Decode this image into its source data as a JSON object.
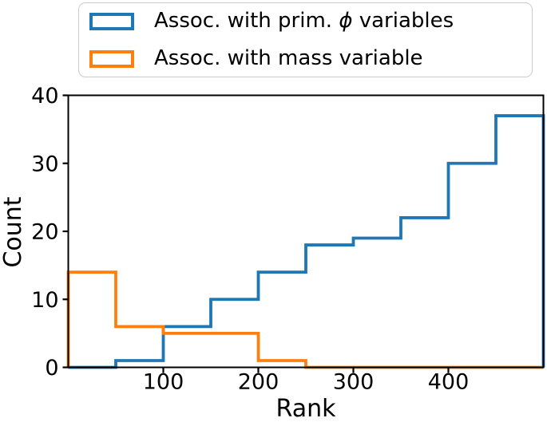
{
  "chart_data": {
    "type": "step_histogram",
    "title": "",
    "xlabel": "Rank",
    "ylabel": "Count",
    "xlim": [
      0,
      500
    ],
    "ylim": [
      0,
      40
    ],
    "x_ticks": [
      100,
      200,
      300,
      400
    ],
    "y_ticks": [
      0,
      10,
      20,
      30,
      40
    ],
    "grid": false,
    "bin_edges": [
      0,
      50,
      100,
      150,
      200,
      250,
      300,
      350,
      400,
      450,
      500
    ],
    "series": [
      {
        "name": "Assoc. with prim. ϕ variables",
        "color": "#1f77b4",
        "values": [
          0,
          1,
          6,
          10,
          14,
          18,
          19,
          22,
          30,
          37
        ]
      },
      {
        "name": "Assoc. with mass variable",
        "color": "#ff7f0e",
        "values": [
          14,
          6,
          5,
          5,
          1,
          0,
          0,
          0,
          0,
          0
        ]
      }
    ],
    "axis_color": "#000000",
    "legend_position": "top center, above plot area"
  },
  "legend": {
    "items": [
      {
        "parts": [
          "Assoc. with prim. ",
          "ϕ",
          " variables"
        ]
      },
      {
        "parts": [
          "Assoc. with mass variable",
          "",
          ""
        ]
      }
    ]
  }
}
